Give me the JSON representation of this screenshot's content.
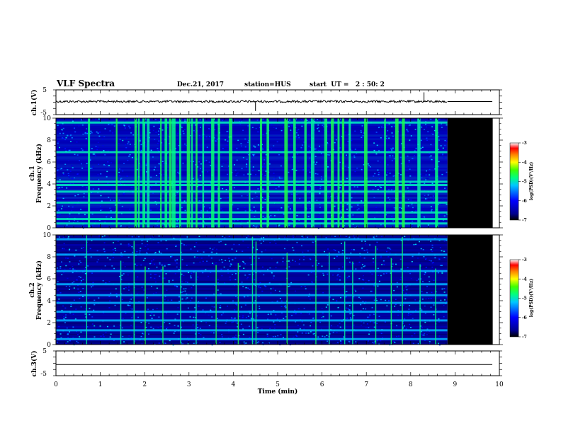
{
  "header": {
    "title": "VLF Spectra",
    "date": "Dec.21, 2017",
    "station": "station=HUS",
    "start_ut": "start  UT =   2 : 50: 2"
  },
  "chart_data": {
    "type": "heatmap",
    "x_axis": {
      "label": "Time (min)",
      "range": [
        0,
        10
      ],
      "ticks": [
        "0",
        "1",
        "2",
        "3",
        "4",
        "5",
        "6",
        "7",
        "8",
        "9",
        "10"
      ]
    },
    "data_end_min": 8.83,
    "black_block_end_min": 9.85,
    "panels": [
      {
        "id": "ch1-waveform",
        "ylabel": "ch.1(V)",
        "ylim": [
          -5,
          5
        ],
        "yticks": [
          "5",
          "-5"
        ],
        "baseline_v": 0.3,
        "spikes": [
          {
            "t": 4.5,
            "v": -3.5
          },
          {
            "t": 8.3,
            "v": 4.0
          }
        ]
      },
      {
        "id": "ch1-spectrogram",
        "ylabel": "ch.1",
        "ylabel2": "Frequency  (kHz)",
        "ylim": [
          0,
          10
        ],
        "yticks": [
          "0",
          "2",
          "4",
          "6",
          "8",
          "10"
        ],
        "colorbar": {
          "label": "log(PSD)(V²/Hz)",
          "ticks": [
            "-3",
            "-4",
            "-5",
            "-6",
            "-7"
          ],
          "range": [
            -7,
            -3
          ]
        },
        "bands_khz": [
          0.4,
          0.8,
          1.4,
          2.3,
          3.3,
          3.9,
          4.2,
          6.9,
          9.6
        ],
        "bursts_min": [
          0.72,
          1.35,
          1.77,
          1.85,
          1.95,
          2.05,
          2.35,
          2.45,
          2.55,
          2.62,
          2.78,
          2.95,
          3.05,
          3.15,
          3.3,
          3.5,
          3.65,
          3.9,
          4.35,
          4.6,
          4.75,
          5.15,
          5.35,
          5.6,
          5.75,
          6.05,
          6.2,
          6.35,
          6.45,
          6.6,
          6.95,
          7.4,
          7.65,
          7.8,
          8.15,
          8.55
        ]
      },
      {
        "id": "ch2-spectrogram",
        "ylabel": "ch.2",
        "ylabel2": "Frequency  (kHz)",
        "ylim": [
          0,
          10
        ],
        "yticks": [
          "0",
          "2",
          "4",
          "6",
          "8",
          "10"
        ],
        "colorbar": {
          "label": "log(PSD)(V²/Hz)",
          "ticks": [
            "-3",
            "-4",
            "-5",
            "-6",
            "-7"
          ],
          "range": [
            -7,
            -3
          ]
        },
        "bands_khz": [
          0.5,
          1.3,
          2.2,
          3.0,
          3.8,
          4.5,
          5.5,
          6.7,
          8.2,
          9.6
        ],
        "bursts_min": [
          0.68,
          1.45,
          1.75,
          2.0,
          2.4,
          2.8,
          3.15,
          3.6,
          4.1,
          4.42,
          4.5,
          5.2,
          5.85,
          6.15,
          6.5,
          6.68,
          7.2,
          7.55,
          7.8,
          8.2,
          8.55
        ]
      },
      {
        "id": "ch3-waveform",
        "ylabel": "ch.3(V)",
        "ylim": [
          -5,
          5
        ],
        "yticks": [
          "5",
          "-5"
        ],
        "baseline_v": -0.5
      }
    ]
  }
}
